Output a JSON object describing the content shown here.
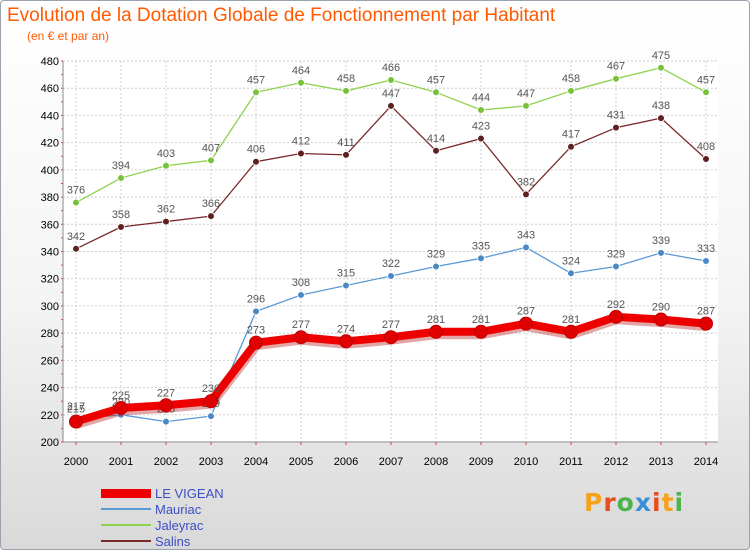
{
  "title": "Evolution de la Dotation Globale de Fonctionnement par Habitant",
  "subtitle": "(en € et par an)",
  "logo": {
    "text": "Proxiti",
    "colors": [
      "#f7a21b",
      "#e84e1b",
      "#4db34d",
      "#3a8fd9",
      "#e84e1b",
      "#f7a21b",
      "#4db34d"
    ]
  },
  "chart_data": {
    "type": "line",
    "x": [
      "2000",
      "2001",
      "2002",
      "2003",
      "2004",
      "2005",
      "2006",
      "2007",
      "2008",
      "2009",
      "2010",
      "2011",
      "2012",
      "2013",
      "2014"
    ],
    "ylim": [
      200,
      480
    ],
    "yticks": [
      200,
      220,
      240,
      260,
      280,
      300,
      320,
      340,
      360,
      380,
      400,
      420,
      440,
      460,
      480
    ],
    "grid": true,
    "legend_position": "bottom-left",
    "series": [
      {
        "name": "Jaleyrac",
        "color": "#8fd14f",
        "marker": "#77c23a",
        "values": [
          376,
          394,
          403,
          407,
          457,
          464,
          458,
          466,
          457,
          444,
          447,
          458,
          467,
          475,
          457
        ]
      },
      {
        "name": "Salins",
        "color": "#7a2a2a",
        "marker": "#5e1f1f",
        "values": [
          342,
          358,
          362,
          366,
          406,
          412,
          411,
          447,
          414,
          423,
          382,
          417,
          431,
          438,
          408
        ]
      },
      {
        "name": "Mauriac",
        "color": "#5a9ad6",
        "marker": "#4b88c6",
        "values": [
          217,
          220,
          215,
          219,
          296,
          308,
          315,
          322,
          329,
          335,
          343,
          324,
          329,
          339,
          333
        ]
      },
      {
        "name": "LE VIGEAN",
        "color": "#ee0000",
        "marker": "#e00000",
        "values": [
          215,
          225,
          227,
          230,
          273,
          277,
          274,
          277,
          281,
          281,
          287,
          281,
          292,
          290,
          287
        ]
      }
    ],
    "data_labels": {
      "Jaleyrac": [
        "376",
        "394",
        "403",
        "407",
        "457",
        "464",
        "458",
        "466",
        "457",
        "444",
        "447",
        "458",
        "467",
        "475",
        "457"
      ],
      "Salins": [
        "342",
        "358",
        "362",
        "366",
        "406",
        "412",
        "411",
        "447",
        "414",
        "423",
        "382",
        "417",
        "431",
        "438",
        "408"
      ],
      "Mauriac": [
        "217",
        "220",
        "215",
        "219",
        "296",
        "308",
        "315",
        "322",
        "329",
        "335",
        "343",
        "324",
        "329",
        "339",
        "333"
      ],
      "LE VIGEAN": [
        "215",
        "225",
        "227",
        "230",
        "273",
        "277",
        "274",
        "277",
        "281",
        "281",
        "287",
        "281",
        "292",
        "290",
        "287"
      ]
    }
  }
}
